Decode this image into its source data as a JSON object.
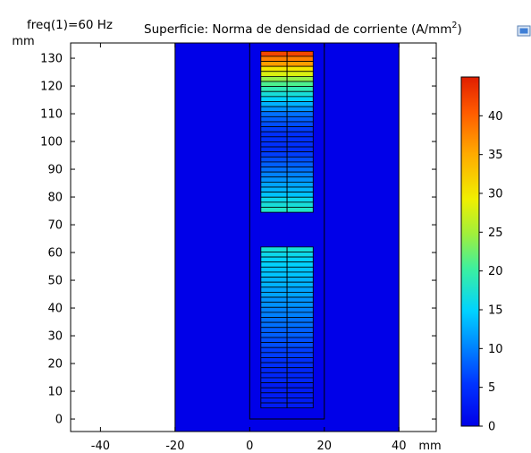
{
  "header": {
    "param_label": "freq(1)=60 Hz",
    "title_text": "Superficie: Norma de densidad de corriente (A/mm",
    "title_sup": "2",
    "title_close": ")"
  },
  "chart_data": {
    "type": "heatmap",
    "title": "Superficie: Norma de densidad de corriente (A/mm²)",
    "xlabel": "mm",
    "ylabel": "mm",
    "xlim": [
      -48,
      50
    ],
    "ylim": [
      -4.5,
      135.5
    ],
    "xticks": [
      -40,
      -20,
      0,
      20,
      40
    ],
    "yticks": [
      0,
      10,
      20,
      30,
      40,
      50,
      60,
      70,
      80,
      90,
      100,
      110,
      120,
      130
    ],
    "colorbar": {
      "range": [
        0,
        45
      ],
      "ticks": [
        0,
        5,
        10,
        15,
        20,
        25,
        30,
        35,
        40
      ],
      "colormap": "rainbow"
    },
    "geometry": {
      "domain_x": [
        -20,
        40
      ],
      "domain_y": [
        -4.5,
        135.5
      ],
      "core_outline": {
        "x": [
          0,
          20
        ],
        "y": [
          0,
          135.5
        ]
      },
      "conductors_x": [
        3,
        17
      ],
      "conductor_split_x": 10
    },
    "regions": [
      {
        "name": "domain background",
        "x": [
          -20,
          40
        ],
        "y": [
          -4.5,
          135.5
        ],
        "value": 0
      },
      {
        "name": "upper winding",
        "y_top": 132.5,
        "y_bottom": 74.5,
        "layers": 32,
        "values_top_to_bottom": [
          42,
          38,
          36,
          30,
          28,
          24,
          21,
          19,
          17,
          15,
          13,
          11,
          9,
          8,
          7,
          6,
          5,
          5,
          5,
          5,
          6,
          7,
          8,
          9,
          10,
          11,
          12,
          13,
          14,
          16,
          17,
          18
        ]
      },
      {
        "name": "lower winding",
        "y_top": 62,
        "y_bottom": 4,
        "layers": 32,
        "values_top_to_bottom": [
          17,
          16,
          15,
          15,
          14,
          14,
          13,
          13,
          12,
          12,
          11,
          11,
          10,
          10,
          9,
          9,
          8,
          8,
          7,
          7,
          6,
          6,
          5,
          5,
          4,
          4,
          4,
          3,
          3,
          3,
          3,
          3
        ]
      }
    ]
  }
}
